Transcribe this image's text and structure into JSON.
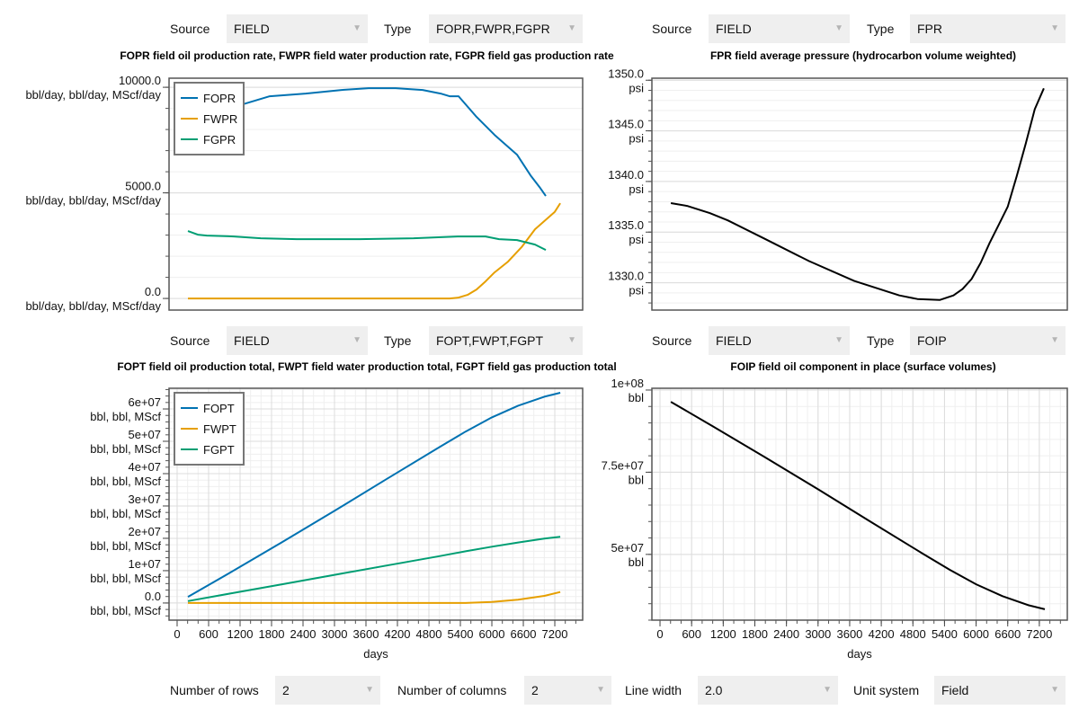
{
  "controls": {
    "panel_tl": {
      "source_label": "Source",
      "source_value": "FIELD",
      "type_label": "Type",
      "type_value": "FOPR,FWPR,FGPR"
    },
    "panel_tr": {
      "source_label": "Source",
      "source_value": "FIELD",
      "type_label": "Type",
      "type_value": "FPR"
    },
    "panel_bl": {
      "source_label": "Source",
      "source_value": "FIELD",
      "type_label": "Type",
      "type_value": "FOPT,FWPT,FGPT"
    },
    "panel_br": {
      "source_label": "Source",
      "source_value": "FIELD",
      "type_label": "Type",
      "type_value": "FOIP"
    },
    "global": {
      "rows_label": "Number of rows",
      "rows_value": "2",
      "cols_label": "Number of columns",
      "cols_value": "2",
      "linewidth_label": "Line width",
      "linewidth_value": "2.0",
      "units_label": "Unit system",
      "units_value": "Field"
    },
    "arrow_icon": "▼"
  },
  "chart_data": [
    {
      "type": "line",
      "title": "FOPR field oil production rate, FWPR field water production rate, FGPR field gas production rate",
      "xlabel": "",
      "ylabel": "",
      "xlim": [
        -154,
        7731
      ],
      "ylim": [
        -550,
        10430
      ],
      "x_tick_labels_shown": false,
      "y_ticks": [
        {
          "value": 0,
          "label": "0.0"
        },
        {
          "value": 5000,
          "label": "5000.0"
        },
        {
          "value": 10000,
          "label": "10000.0"
        }
      ],
      "y_unit": "bbl/day, bbl/day, MScf/day",
      "y_minor_step": 1000,
      "x_grid": false,
      "legend": "top-left",
      "series": [
        {
          "name": "FOPR",
          "color": "#0072b2",
          "x": [
            206,
            1251,
            1766,
            2451,
            3137,
            3651,
            4166,
            4680,
            5023,
            5194,
            5366,
            5709,
            6051,
            6480,
            6737,
            6909,
            7029
          ],
          "values": [
            8700,
            9191,
            9574,
            9702,
            9872,
            9957,
            9957,
            9872,
            9702,
            9574,
            9574,
            8596,
            7745,
            6809,
            5830,
            5277,
            4851
          ]
        },
        {
          "name": "FWPR",
          "color": "#e69f00",
          "x": [
            206,
            2000,
            4000,
            5194,
            5366,
            5537,
            5709,
            5880,
            6051,
            6309,
            6566,
            6823,
            7200,
            7305
          ],
          "values": [
            0,
            0,
            0,
            0,
            43,
            170,
            426,
            809,
            1234,
            1745,
            2426,
            3277,
            4100,
            4511
          ]
        },
        {
          "name": "FGPR",
          "color": "#009e73",
          "x": [
            206,
            394,
            566,
            1080,
            1594,
            2280,
            3480,
            4509,
            5366,
            5880,
            6137,
            6480,
            6823,
            7029
          ],
          "values": [
            3191,
            3021,
            2979,
            2936,
            2851,
            2809,
            2809,
            2851,
            2936,
            2936,
            2809,
            2766,
            2553,
            2298
          ]
        }
      ]
    },
    {
      "type": "line",
      "title": "FPR field average pressure (hydrocarbon volume weighted)",
      "xlabel": "",
      "ylabel": "",
      "xlim": [
        -154,
        7731
      ],
      "ylim": [
        1327.3,
        1350.2
      ],
      "x_tick_labels_shown": false,
      "y_ticks": [
        {
          "value": 1330,
          "label": "1330.0"
        },
        {
          "value": 1335,
          "label": "1335.0"
        },
        {
          "value": 1340,
          "label": "1340.0"
        },
        {
          "value": 1345,
          "label": "1345.0"
        },
        {
          "value": 1350,
          "label": "1350.0"
        }
      ],
      "y_unit": "psi",
      "y_minor_step": 1,
      "x_grid": false,
      "legend": "none",
      "series": [
        {
          "color": "#000000",
          "x": [
            206,
            514,
            943,
            1286,
            1971,
            2829,
            3686,
            4543,
            4886,
            5314,
            5571,
            5743,
            5914,
            6086,
            6257,
            6429,
            6600,
            6771,
            6943,
            7114,
            7286
          ],
          "values": [
            1337.86,
            1337.59,
            1336.88,
            1336.16,
            1334.38,
            1332.14,
            1330.18,
            1328.75,
            1328.39,
            1328.3,
            1328.75,
            1329.38,
            1330.36,
            1331.96,
            1333.93,
            1335.71,
            1337.5,
            1340.54,
            1343.75,
            1347.14,
            1349.2
          ]
        }
      ]
    },
    {
      "type": "line",
      "title": "FOPT field oil production total, FWPT field water production total, FGPT field gas production total",
      "xlabel": "days",
      "ylabel": "",
      "xlim": [
        -154,
        7731
      ],
      "ylim": [
        -5300000,
        66400000
      ],
      "x_tick_labels_shown": true,
      "x_ticks": [
        0,
        600,
        1200,
        1800,
        2400,
        3000,
        3600,
        4200,
        4800,
        5400,
        6000,
        6600,
        7200
      ],
      "x_minor_step": 200,
      "y_ticks": [
        {
          "value": 0,
          "label": "0.0"
        },
        {
          "value": 10000000,
          "label": "1e+07"
        },
        {
          "value": 20000000,
          "label": "2e+07"
        },
        {
          "value": 30000000,
          "label": "3e+07"
        },
        {
          "value": 40000000,
          "label": "4e+07"
        },
        {
          "value": 50000000,
          "label": "5e+07"
        },
        {
          "value": 60000000,
          "label": "6e+07"
        }
      ],
      "y_unit": "bbl, bbl, MScf",
      "y_minor_step": 2000000,
      "x_grid": true,
      "legend": "top-left",
      "series": [
        {
          "name": "FOPT",
          "color": "#0072b2",
          "x": [
            206,
            1000,
            2000,
            3000,
            4000,
            5000,
            5500,
            6000,
            6500,
            7000,
            7305
          ],
          "values": [
            1900000,
            9300000,
            18800000,
            28500000,
            38400000,
            48200000,
            53000000,
            57400000,
            61000000,
            63800000,
            65000000
          ]
        },
        {
          "name": "FWPT",
          "color": "#e69f00",
          "x": [
            206,
            1000,
            2000,
            3000,
            4000,
            5000,
            5500,
            6000,
            6500,
            7000,
            7305
          ],
          "values": [
            0,
            0,
            0,
            0,
            0,
            0,
            20000,
            300000,
            1000000,
            2200000,
            3400000
          ]
        },
        {
          "name": "FGPT",
          "color": "#009e73",
          "x": [
            206,
            1000,
            2000,
            3000,
            4000,
            5000,
            5500,
            6000,
            6500,
            7000,
            7305
          ],
          "values": [
            600000,
            2900000,
            5800000,
            8700000,
            11600000,
            14500000,
            16000000,
            17400000,
            18700000,
            19900000,
            20500000
          ]
        }
      ]
    },
    {
      "type": "line",
      "title": "FOIP field oil component in place (surface volumes)",
      "xlabel": "days",
      "ylabel": "",
      "xlim": [
        -154,
        7731
      ],
      "ylim": [
        30000000,
        100540000
      ],
      "x_tick_labels_shown": true,
      "x_ticks": [
        0,
        600,
        1200,
        1800,
        2400,
        3000,
        3600,
        4200,
        4800,
        5400,
        6000,
        6600,
        7200
      ],
      "x_minor_step": 200,
      "y_ticks": [
        {
          "value": 50000000,
          "label": "5e+07"
        },
        {
          "value": 75000000,
          "label": "7.5e+07"
        },
        {
          "value": 100000000,
          "label": "1e+08"
        }
      ],
      "y_unit": "bbl",
      "y_minor_step": 5000000,
      "x_grid": true,
      "legend": "none",
      "series": [
        {
          "color": "#000000",
          "x": [
            206,
            1000,
            2000,
            3000,
            4000,
            5000,
            5500,
            6000,
            6500,
            7000,
            7305
          ],
          "values": [
            96400000,
            89000000,
            79500000,
            69800000,
            59900000,
            50100000,
            45300000,
            40900000,
            37300000,
            34500000,
            33300000
          ]
        }
      ]
    }
  ]
}
